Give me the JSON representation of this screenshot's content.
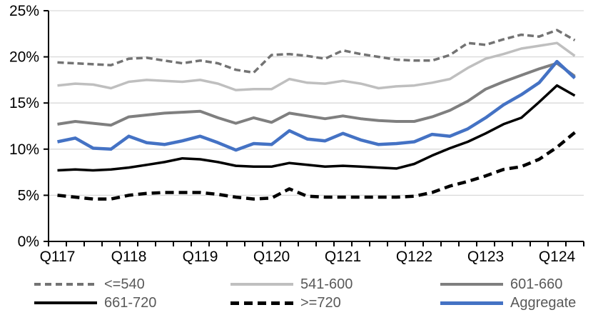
{
  "chart_data": {
    "type": "line",
    "title": "",
    "xlabel": "",
    "ylabel": "",
    "ylim": [
      0,
      25
    ],
    "yticks": [
      0,
      5,
      10,
      15,
      20,
      25
    ],
    "ytick_labels": [
      "0%",
      "5%",
      "10%",
      "15%",
      "20%",
      "25%"
    ],
    "grid": "horizontal",
    "legend_position": "bottom",
    "categories": [
      "Q117",
      "Q217",
      "Q317",
      "Q417",
      "Q118",
      "Q218",
      "Q318",
      "Q418",
      "Q119",
      "Q219",
      "Q319",
      "Q419",
      "Q120",
      "Q220",
      "Q320",
      "Q420",
      "Q121",
      "Q221",
      "Q321",
      "Q421",
      "Q122",
      "Q222",
      "Q322",
      "Q422",
      "Q123",
      "Q223",
      "Q323",
      "Q423",
      "Q124",
      "Q224"
    ],
    "xtick_labels": [
      "Q117",
      "Q118",
      "Q119",
      "Q120",
      "Q121",
      "Q122",
      "Q123",
      "Q124"
    ],
    "xtick_every": 4,
    "series": [
      {
        "name": "<=540",
        "color": "#737373",
        "style": "dashed",
        "width": 3.5,
        "values": [
          19.4,
          19.3,
          19.2,
          19.1,
          19.8,
          19.9,
          19.6,
          19.3,
          19.6,
          19.3,
          18.6,
          18.3,
          20.2,
          20.3,
          20.1,
          19.8,
          20.7,
          20.3,
          20.0,
          19.7,
          19.6,
          19.6,
          20.2,
          21.5,
          21.3,
          21.9,
          22.4,
          22.2,
          22.9,
          21.8
        ]
      },
      {
        "name": "541-600",
        "color": "#BFBFBF",
        "style": "solid",
        "width": 3.5,
        "values": [
          16.9,
          17.1,
          17.0,
          16.6,
          17.3,
          17.5,
          17.4,
          17.3,
          17.5,
          17.1,
          16.4,
          16.5,
          16.5,
          17.6,
          17.2,
          17.1,
          17.4,
          17.1,
          16.6,
          16.8,
          16.9,
          17.2,
          17.6,
          18.8,
          19.8,
          20.3,
          20.9,
          21.2,
          21.5,
          20.1
        ]
      },
      {
        "name": "601-660",
        "color": "#7F7F7F",
        "style": "solid",
        "width": 4,
        "values": [
          12.7,
          13.0,
          12.8,
          12.6,
          13.5,
          13.7,
          13.9,
          14.0,
          14.1,
          13.4,
          12.8,
          13.4,
          12.9,
          13.9,
          13.6,
          13.3,
          13.6,
          13.3,
          13.1,
          13.0,
          13.0,
          13.5,
          14.2,
          15.2,
          16.5,
          17.3,
          18.0,
          18.7,
          19.3,
          17.9
        ]
      },
      {
        "name": "661-720",
        "color": "#000000",
        "style": "solid",
        "width": 3.5,
        "values": [
          7.7,
          7.8,
          7.7,
          7.8,
          8.0,
          8.3,
          8.6,
          9.0,
          8.9,
          8.6,
          8.2,
          8.1,
          8.1,
          8.5,
          8.3,
          8.1,
          8.2,
          8.1,
          8.0,
          7.9,
          8.4,
          9.3,
          10.1,
          10.8,
          11.7,
          12.7,
          13.4,
          15.1,
          16.9,
          15.8
        ]
      },
      {
        "name": ">=720",
        "color": "#000000",
        "style": "dashed",
        "width": 4.5,
        "values": [
          5.0,
          4.8,
          4.6,
          4.6,
          5.0,
          5.2,
          5.3,
          5.3,
          5.3,
          5.1,
          4.8,
          4.6,
          4.7,
          5.7,
          4.9,
          4.8,
          4.8,
          4.8,
          4.8,
          4.8,
          4.9,
          5.3,
          6.0,
          6.5,
          7.1,
          7.8,
          8.1,
          8.9,
          10.2,
          11.8
        ]
      },
      {
        "name": "Aggregate",
        "color": "#4472C4",
        "style": "solid",
        "width": 4.5,
        "values": [
          10.8,
          11.2,
          10.1,
          10.0,
          11.4,
          10.7,
          10.5,
          10.9,
          11.4,
          10.7,
          9.9,
          10.6,
          10.5,
          12.0,
          11.1,
          10.9,
          11.7,
          11.0,
          10.5,
          10.6,
          10.8,
          11.6,
          11.4,
          12.2,
          13.4,
          14.8,
          15.9,
          17.2,
          19.5,
          17.7
        ]
      }
    ],
    "colors": {
      "gridline": "#D9D9D9",
      "axis": "#000000",
      "axis_label": "#000000",
      "legend_text": "#595959"
    }
  }
}
